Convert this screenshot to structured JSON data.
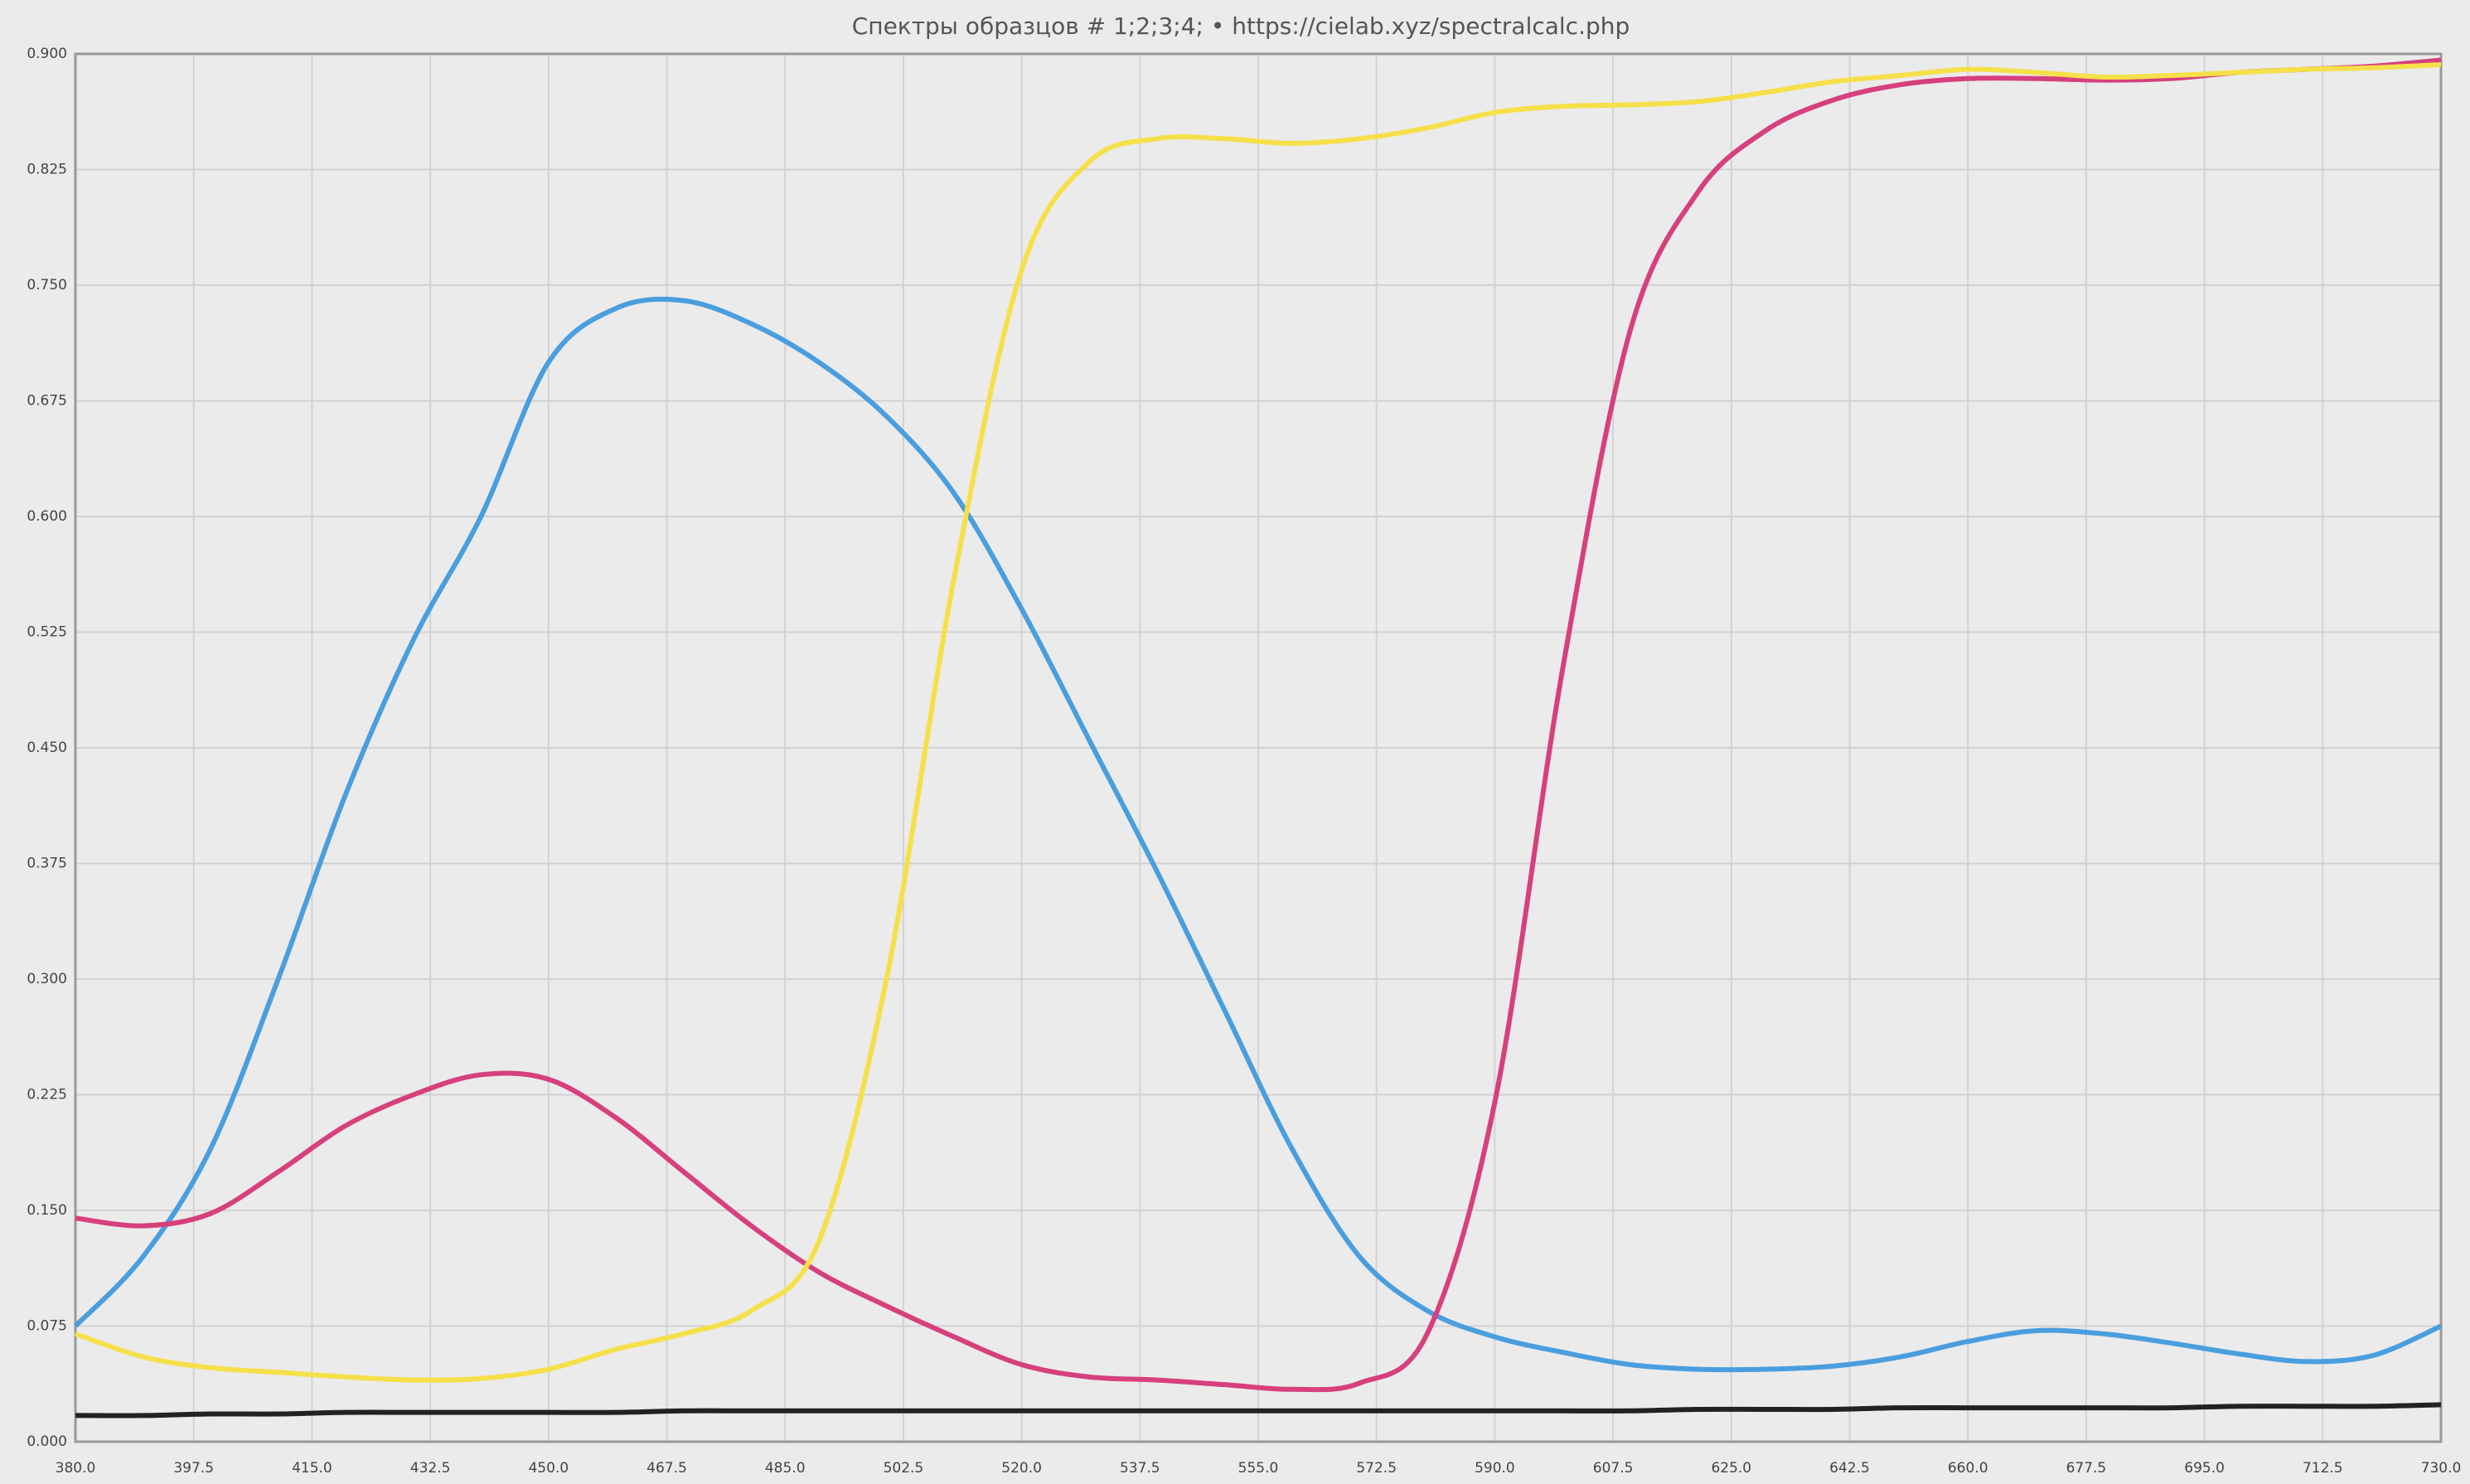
{
  "chart_data": {
    "type": "line",
    "title": "Спектры образцов # 1;2;3;4;  •  https://cielab.xyz/spectralcalc.php",
    "x": [
      380,
      390,
      400,
      410,
      420,
      430,
      440,
      450,
      460,
      470,
      480,
      490,
      500,
      510,
      520,
      530,
      540,
      550,
      560,
      570,
      580,
      590,
      600,
      610,
      620,
      630,
      640,
      650,
      660,
      670,
      680,
      690,
      700,
      710,
      720,
      730
    ],
    "series": [
      {
        "color": "#4a9ede",
        "values": [
          0.075,
          0.12,
          0.19,
          0.3,
          0.42,
          0.52,
          0.6,
          0.7,
          0.735,
          0.74,
          0.725,
          0.7,
          0.665,
          0.615,
          0.54,
          0.455,
          0.37,
          0.28,
          0.19,
          0.12,
          0.085,
          0.068,
          0.058,
          0.05,
          0.047,
          0.047,
          0.049,
          0.055,
          0.065,
          0.072,
          0.07,
          0.064,
          0.057,
          0.052,
          0.056,
          0.075
        ]
      },
      {
        "color": "#d6407c",
        "values": [
          0.145,
          0.14,
          0.148,
          0.175,
          0.205,
          0.225,
          0.238,
          0.235,
          0.21,
          0.175,
          0.14,
          0.11,
          0.088,
          0.068,
          0.05,
          0.042,
          0.04,
          0.037,
          0.034,
          0.038,
          0.07,
          0.22,
          0.5,
          0.72,
          0.81,
          0.85,
          0.87,
          0.88,
          0.884,
          0.884,
          0.883,
          0.884,
          0.888,
          0.89,
          0.892,
          0.896
        ]
      },
      {
        "color": "#f5e04a",
        "values": [
          0.07,
          0.055,
          0.048,
          0.045,
          0.042,
          0.04,
          0.041,
          0.047,
          0.06,
          0.07,
          0.085,
          0.13,
          0.3,
          0.56,
          0.76,
          0.83,
          0.845,
          0.845,
          0.842,
          0.845,
          0.852,
          0.862,
          0.866,
          0.867,
          0.869,
          0.875,
          0.882,
          0.886,
          0.89,
          0.888,
          0.885,
          0.886,
          0.888,
          0.89,
          0.891,
          0.893
        ]
      },
      {
        "color": "#222222",
        "values": [
          0.017,
          0.017,
          0.018,
          0.018,
          0.019,
          0.019,
          0.019,
          0.019,
          0.019,
          0.02,
          0.02,
          0.02,
          0.02,
          0.02,
          0.02,
          0.02,
          0.02,
          0.02,
          0.02,
          0.02,
          0.02,
          0.02,
          0.02,
          0.02,
          0.021,
          0.021,
          0.021,
          0.022,
          0.022,
          0.022,
          0.022,
          0.022,
          0.023,
          0.023,
          0.023,
          0.024
        ]
      }
    ],
    "xlim": [
      380,
      730
    ],
    "xticks": [
      {
        "value": 380,
        "label": "380.0"
      },
      397.5,
      {
        "value": 415,
        "label": "415.0"
      },
      432.5,
      {
        "value": 450,
        "label": "450.0"
      },
      467.5,
      {
        "value": 485,
        "label": "485.0"
      },
      502.5,
      {
        "value": 520,
        "label": "520.0"
      },
      537.5,
      {
        "value": 555,
        "label": "555.0"
      },
      572.5,
      {
        "value": 590,
        "label": "590.0"
      },
      607.5,
      {
        "value": 625,
        "label": "625.0"
      },
      642.5,
      {
        "value": 660,
        "label": "660.0"
      },
      677.5,
      {
        "value": 695,
        "label": "695.0"
      },
      712.5,
      {
        "value": 730,
        "label": "730.0"
      }
    ],
    "ylim": [
      0,
      0.9
    ],
    "yticks": [
      {
        "value": 0,
        "label": "0.000"
      },
      0.075,
      {
        "value": 0.15,
        "label": "0.150"
      },
      0.225,
      {
        "value": 0.3,
        "label": "0.300"
      },
      0.375,
      {
        "value": 0.45,
        "label": "0.450"
      },
      0.525,
      {
        "value": 0.6,
        "label": "0.600"
      },
      0.675,
      {
        "value": 0.75,
        "label": "0.750"
      },
      0.825,
      {
        "value": 0.9,
        "label": "0.900"
      }
    ],
    "grid": true
  }
}
